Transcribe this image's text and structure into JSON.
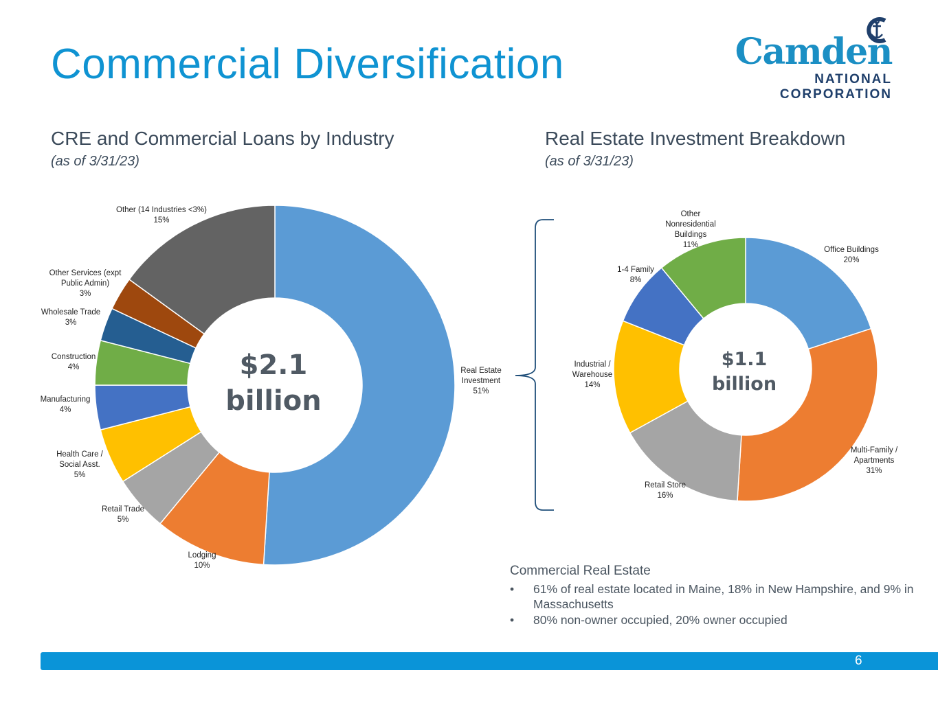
{
  "title": "Commercial Diversification",
  "logo": {
    "word": "Camden",
    "line1": "NATIONAL",
    "line2": "CORPORATION"
  },
  "colors": {
    "title": "#0f93d2",
    "footer_bar": "#0a94d8",
    "bracket": "#1f4e79"
  },
  "chart_data": [
    {
      "type": "pie",
      "variant": "donut",
      "title": "CRE and Commercial Loans by Industry",
      "subtitle": "(as of 3/31/23)",
      "center_label": [
        "$2.1",
        "billion"
      ],
      "slices": [
        {
          "label": [
            "Real Estate",
            "Investment"
          ],
          "percent_label": "51%",
          "value": 51,
          "color": "#5b9bd5"
        },
        {
          "label": [
            "Lodging"
          ],
          "percent_label": "10%",
          "value": 10,
          "color": "#ed7d31"
        },
        {
          "label": [
            "Retail Trade"
          ],
          "percent_label": "5%",
          "value": 5,
          "color": "#a5a5a5"
        },
        {
          "label": [
            "Health Care /",
            "Social Asst."
          ],
          "percent_label": "5%",
          "value": 5,
          "color": "#ffc000"
        },
        {
          "label": [
            "Manufacturing"
          ],
          "percent_label": "4%",
          "value": 4,
          "color": "#4472c4"
        },
        {
          "label": [
            "Construction"
          ],
          "percent_label": "4%",
          "value": 4,
          "color": "#70ad47"
        },
        {
          "label": [
            "Wholesale Trade"
          ],
          "percent_label": "3%",
          "value": 3,
          "color": "#255e91"
        },
        {
          "label": [
            "Other Services (expt",
            "Public Admin)"
          ],
          "percent_label": "3%",
          "value": 3,
          "color": "#9e480e"
        },
        {
          "label": [
            "Other (14 Industries <3%)"
          ],
          "percent_label": "15%",
          "value": 15,
          "color": "#636363"
        }
      ]
    },
    {
      "type": "pie",
      "variant": "donut",
      "title": "Real Estate Investment Breakdown",
      "subtitle": "(as of 3/31/23)",
      "center_label": [
        "$1.1",
        "billion"
      ],
      "slices": [
        {
          "label": [
            "Office Buildings"
          ],
          "percent_label": "20%",
          "value": 20,
          "color": "#5b9bd5"
        },
        {
          "label": [
            "Multi-Family /",
            "Apartments"
          ],
          "percent_label": "31%",
          "value": 31,
          "color": "#ed7d31"
        },
        {
          "label": [
            "Retail Store"
          ],
          "percent_label": "16%",
          "value": 16,
          "color": "#a5a5a5"
        },
        {
          "label": [
            "Industrial /",
            "Warehouse"
          ],
          "percent_label": "14%",
          "value": 14,
          "color": "#ffc000"
        },
        {
          "label": [
            "1-4 Family"
          ],
          "percent_label": "8%",
          "value": 8,
          "color": "#4472c4"
        },
        {
          "label": [
            "Other",
            "Nonresidential",
            "Buildings"
          ],
          "percent_label": "11%",
          "value": 11,
          "color": "#70ad47"
        }
      ]
    }
  ],
  "commercial_real_estate": {
    "heading": "Commercial Real Estate",
    "bullet_char": "•",
    "bullets": [
      "61% of real estate located in Maine, 18% in New Hampshire, and 9% in Massachusetts",
      "80% non-owner occupied, 20% owner occupied"
    ]
  },
  "page_number": "6"
}
